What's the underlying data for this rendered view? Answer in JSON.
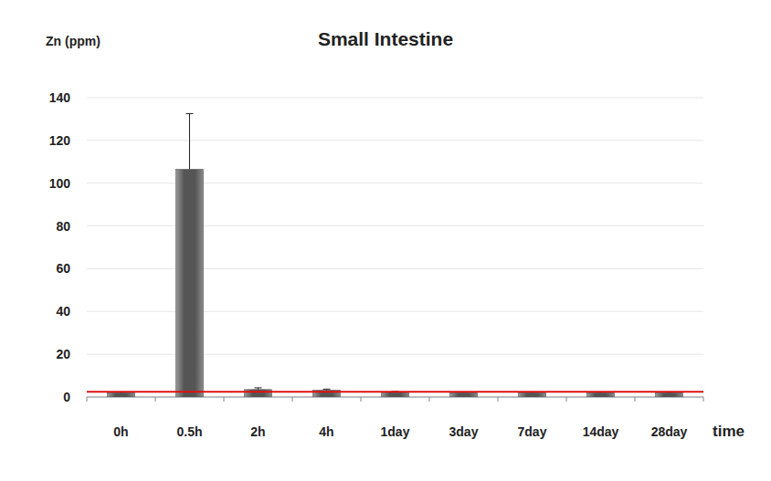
{
  "chart_data": {
    "type": "bar",
    "title": "Small Intestine",
    "y_label": "Zn (ppm)",
    "x_label": "time",
    "categories": [
      "0h",
      "0.5h",
      "2h",
      "4h",
      "1day",
      "3day",
      "7day",
      "14day",
      "28day"
    ],
    "values": [
      2,
      106.5,
      3.5,
      3.2,
      2.3,
      2,
      2,
      2,
      2
    ],
    "errors": [
      0.3,
      26,
      0.8,
      0.5,
      0.3,
      0.3,
      0.3,
      0.3,
      0.3
    ],
    "baseline": 2.5,
    "color": "#555555",
    "ylim": [
      0,
      140
    ],
    "yticks": [
      0,
      20,
      40,
      60,
      80,
      100,
      120,
      140
    ],
    "grid": true
  }
}
